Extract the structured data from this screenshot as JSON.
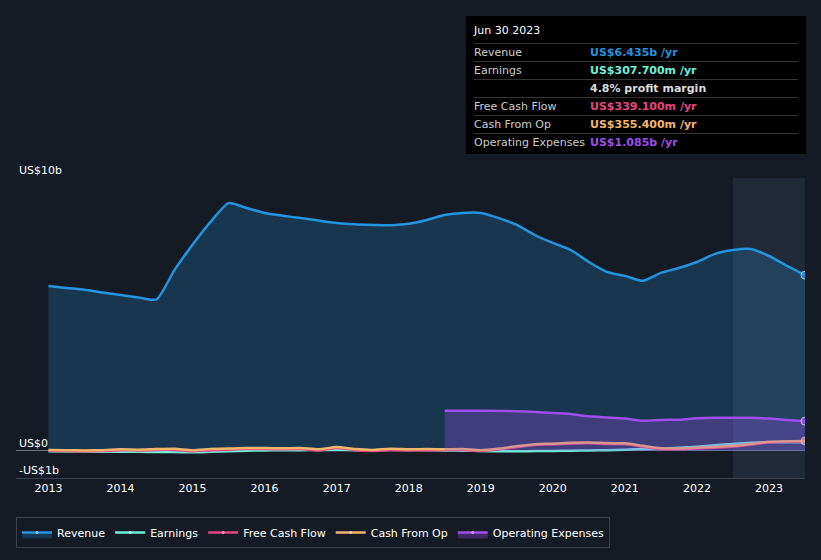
{
  "chart_data": {
    "type": "line",
    "x": [
      2013,
      2013.25,
      2013.5,
      2013.75,
      2014,
      2014.25,
      2014.5,
      2014.75,
      2015,
      2015.25,
      2015.5,
      2015.75,
      2016,
      2016.25,
      2016.5,
      2016.75,
      2017,
      2017.25,
      2017.5,
      2017.75,
      2018,
      2018.25,
      2018.5,
      2018.75,
      2019,
      2019.25,
      2019.5,
      2019.75,
      2020,
      2020.25,
      2020.5,
      2020.75,
      2021,
      2021.25,
      2021.5,
      2021.75,
      2022,
      2022.25,
      2022.5,
      2022.75,
      2023,
      2023.25,
      2023.5
    ],
    "series": [
      {
        "name": "Revenue",
        "color": "#2394df",
        "values": [
          6.04,
          5.97,
          5.9,
          5.8,
          5.71,
          5.62,
          5.55,
          6.63,
          7.55,
          8.39,
          9.08,
          8.9,
          8.72,
          8.62,
          8.53,
          8.44,
          8.35,
          8.3,
          8.28,
          8.27,
          8.32,
          8.46,
          8.64,
          8.72,
          8.72,
          8.53,
          8.28,
          7.91,
          7.62,
          7.36,
          6.92,
          6.56,
          6.41,
          6.23,
          6.52,
          6.7,
          6.92,
          7.22,
          7.36,
          7.4,
          7.14,
          6.78,
          6.435
        ]
      },
      {
        "name": "Earnings",
        "color": "#6cf0d8",
        "values": [
          -0.02,
          -0.03,
          -0.03,
          -0.04,
          -0.03,
          -0.04,
          -0.05,
          -0.05,
          -0.06,
          -0.04,
          -0.02,
          0.0,
          0.01,
          0.02,
          0.02,
          0.03,
          0.03,
          0.02,
          0.02,
          0.03,
          0.03,
          0.02,
          0.01,
          0.0,
          -0.01,
          -0.02,
          -0.02,
          -0.01,
          -0.01,
          0.0,
          0.01,
          0.02,
          0.04,
          0.06,
          0.08,
          0.11,
          0.15,
          0.2,
          0.25,
          0.29,
          0.31,
          0.31,
          0.3077
        ]
      },
      {
        "name": "Free Cash Flow",
        "color": "#e6467f",
        "values": [
          0.0,
          -0.01,
          -0.02,
          -0.01,
          0.02,
          0.01,
          0.03,
          0.03,
          -0.02,
          0.02,
          0.04,
          0.06,
          0.06,
          0.05,
          0.06,
          0.01,
          0.1,
          0.02,
          -0.01,
          0.03,
          0.01,
          0.02,
          0.02,
          0.03,
          -0.01,
          0.05,
          0.13,
          0.21,
          0.23,
          0.26,
          0.27,
          0.25,
          0.24,
          0.15,
          0.06,
          0.05,
          0.08,
          0.11,
          0.15,
          0.22,
          0.3,
          0.33,
          0.3391
        ]
      },
      {
        "name": "Cash From Op",
        "color": "#f2b56b",
        "values": [
          0.03,
          0.02,
          0.01,
          0.02,
          0.05,
          0.04,
          0.06,
          0.07,
          0.02,
          0.06,
          0.08,
          0.1,
          0.1,
          0.09,
          0.1,
          0.05,
          0.14,
          0.06,
          0.03,
          0.07,
          0.05,
          0.06,
          0.05,
          0.06,
          0.02,
          0.08,
          0.16,
          0.24,
          0.26,
          0.29,
          0.3,
          0.28,
          0.27,
          0.18,
          0.09,
          0.08,
          0.11,
          0.14,
          0.18,
          0.25,
          0.33,
          0.35,
          0.3554
        ]
      },
      {
        "name": "Operating Expenses",
        "color": "#9c4feb",
        "values": [
          null,
          null,
          null,
          null,
          null,
          null,
          null,
          null,
          null,
          null,
          null,
          null,
          null,
          null,
          null,
          null,
          null,
          null,
          null,
          null,
          null,
          null,
          1.47,
          1.47,
          1.47,
          1.46,
          1.45,
          1.42,
          1.38,
          1.35,
          1.26,
          1.22,
          1.18,
          1.1,
          1.13,
          1.14,
          1.19,
          1.21,
          1.21,
          1.21,
          1.18,
          1.13,
          1.085
        ]
      }
    ],
    "xlim": [
      2012.55,
      2023.5
    ],
    "xticks": [
      2013,
      2014,
      2015,
      2016,
      2017,
      2018,
      2019,
      2020,
      2021,
      2022,
      2023
    ],
    "ylim": [
      -1,
      10
    ],
    "yticks": [
      {
        "value": -1,
        "label": "-US$1b"
      },
      {
        "value": 0,
        "label": "US$0"
      },
      {
        "value": 10,
        "label": "US$10b"
      }
    ],
    "highlight_x": [
      2022.5,
      2023.5
    ],
    "grid": true,
    "legend": "bottom",
    "annotations": {
      "title": "Jun 30 2023",
      "rows": [
        {
          "label": "Revenue",
          "value": "US$6.435b /yr",
          "color": "#2394df"
        },
        {
          "label": "Earnings",
          "value": "US$307.700m /yr",
          "color": "#6cf0d8"
        },
        {
          "value": "4.8% profit margin",
          "color": "#dddddd"
        },
        {
          "label": "Free Cash Flow",
          "value": "US$339.100m /yr",
          "color": "#e6467f"
        },
        {
          "label": "Cash From Op",
          "value": "US$355.400m /yr",
          "color": "#f2b56b"
        },
        {
          "label": "Operating Expenses",
          "value": "US$1.085b /yr",
          "color": "#9c4feb"
        }
      ]
    }
  }
}
